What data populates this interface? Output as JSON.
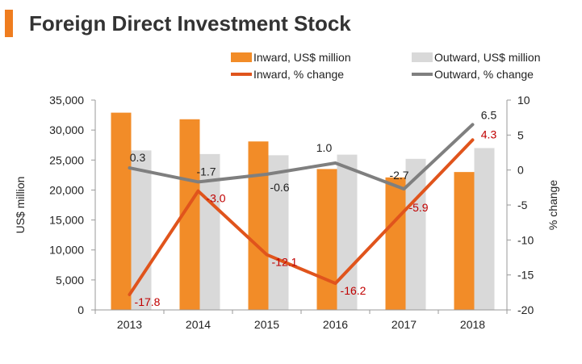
{
  "header": {
    "title": "Foreign Direct Investment Stock",
    "accent_color": "#ef7d1f"
  },
  "chart_data": {
    "type": "bar",
    "title": "Foreign Direct Investment Stock",
    "categories": [
      "2013",
      "2014",
      "2015",
      "2016",
      "2017",
      "2018"
    ],
    "ylabel": "US$ million",
    "y2label": "% change",
    "ylim": [
      0,
      35000
    ],
    "y2lim": [
      -20,
      10
    ],
    "yticks": [
      "0",
      "5,000",
      "10,000",
      "15,000",
      "20,000",
      "25,000",
      "30,000",
      "35,000"
    ],
    "y2ticks": [
      "-20",
      "-15",
      "-10",
      "-5",
      "0",
      "5",
      "10"
    ],
    "grid": false,
    "legend": "top",
    "series": [
      {
        "name": "Inward, US$ million",
        "type": "bar",
        "axis": "left",
        "color": "#f28c28",
        "values": [
          32900,
          31800,
          28100,
          23500,
          22100,
          23000
        ]
      },
      {
        "name": "Outward, US$ million",
        "type": "bar",
        "axis": "left",
        "color": "#d9d9d9",
        "values": [
          26600,
          26000,
          25800,
          25900,
          25200,
          27000
        ]
      },
      {
        "name": "Inward, % change",
        "type": "line",
        "axis": "right",
        "color": "#e0541c",
        "values": [
          -17.8,
          -3.0,
          -12.1,
          -16.2,
          -5.9,
          4.3
        ],
        "labels": [
          "-17.8",
          "-3.0",
          "-12.1",
          "-16.2",
          "-5.9",
          "4.3"
        ],
        "label_color": "#c00000"
      },
      {
        "name": "Outward, % change",
        "type": "line",
        "axis": "right",
        "color": "#7f7f7f",
        "values": [
          0.3,
          -1.7,
          -0.6,
          1.0,
          -2.7,
          6.5
        ],
        "labels": [
          "0.3",
          "-1.7",
          "-0.6",
          "1.0",
          "-2.7",
          "6.5"
        ],
        "label_color": "#222222"
      }
    ]
  }
}
